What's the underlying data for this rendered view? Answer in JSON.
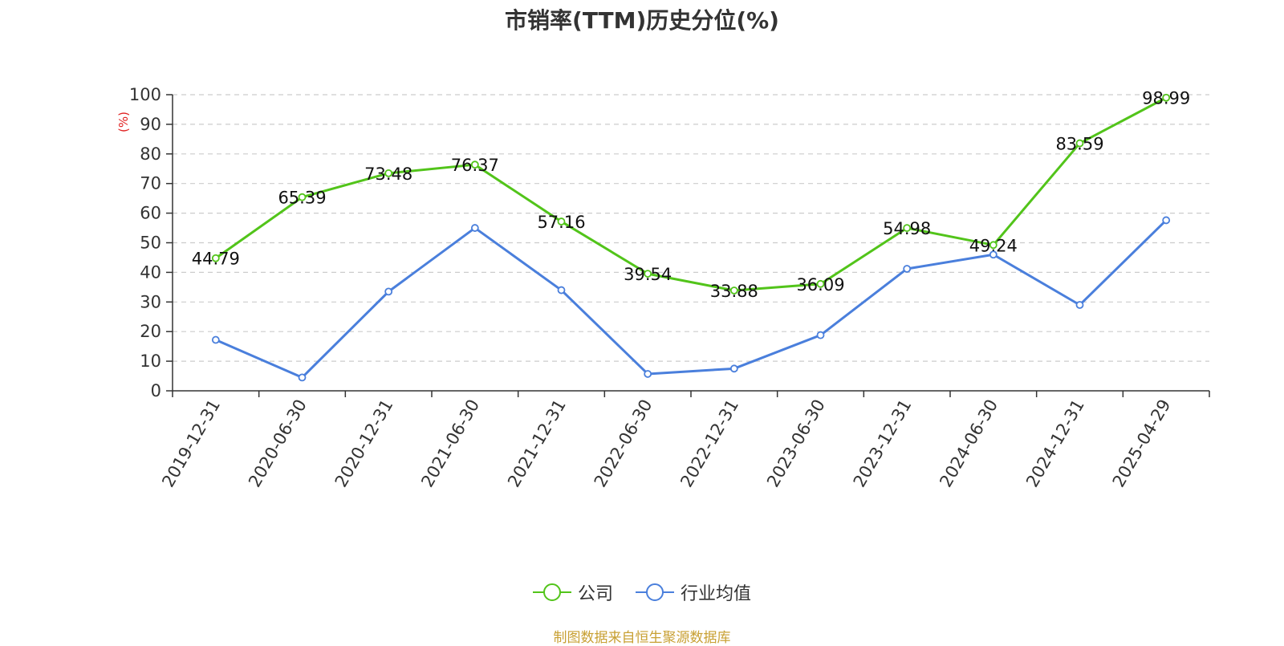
{
  "colors": {
    "company": "#52c41a",
    "industry": "#4a7fdc",
    "grid": "#cccccc",
    "axis": "#333333",
    "ylabel": "#e02020",
    "source": "#c8a033"
  },
  "chart_data": {
    "type": "line",
    "title": "市销率(TTM)历史分位(%)",
    "ylabel": "(%)",
    "ylim": [
      0,
      100
    ],
    "yticks": [
      0,
      10,
      20,
      30,
      40,
      50,
      60,
      70,
      80,
      90,
      100
    ],
    "grid": true,
    "legend_position": "bottom",
    "categories": [
      "2019-12-31",
      "2020-06-30",
      "2020-12-31",
      "2021-06-30",
      "2021-12-31",
      "2022-06-30",
      "2022-12-31",
      "2023-06-30",
      "2023-12-31",
      "2024-06-30",
      "2024-12-31",
      "2025-04-29"
    ],
    "series": [
      {
        "name": "公司",
        "color": "#52c41a",
        "show_labels": true,
        "values": [
          44.79,
          65.39,
          73.48,
          76.37,
          57.16,
          39.54,
          33.88,
          36.09,
          54.98,
          49.24,
          83.59,
          98.99
        ]
      },
      {
        "name": "行业均值",
        "color": "#4a7fdc",
        "show_labels": false,
        "values": [
          17.2,
          4.5,
          33.5,
          55.0,
          34.0,
          5.7,
          7.5,
          18.8,
          41.2,
          46.0,
          29.0,
          57.6
        ]
      }
    ]
  },
  "source": "制图数据来自恒生聚源数据库"
}
